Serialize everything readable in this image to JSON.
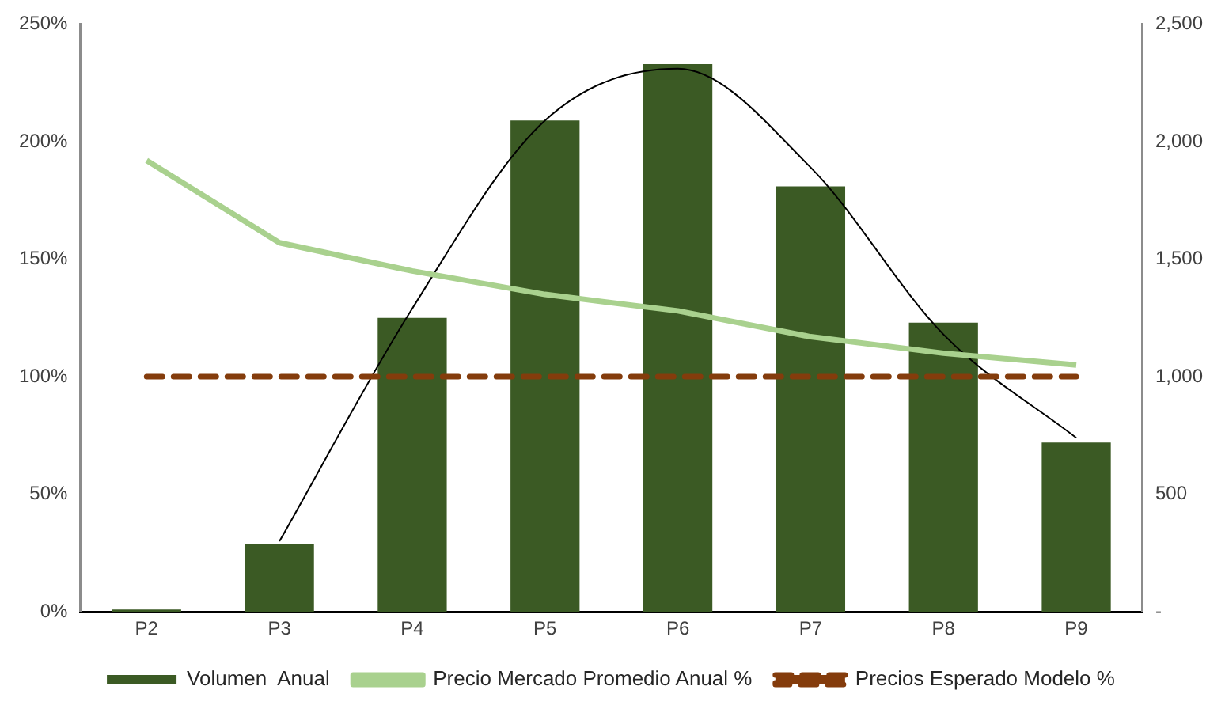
{
  "chart_data": {
    "type": "bar",
    "categories": [
      "P2",
      "P3",
      "P4",
      "P5",
      "P6",
      "P7",
      "P8",
      "P9"
    ],
    "series": [
      {
        "name": "Volumen  Anual",
        "axis": "y2",
        "color": "#3b5a24",
        "values": [
          10,
          290,
          1250,
          2090,
          2330,
          1810,
          1230,
          720
        ]
      },
      {
        "name": "Precio Mercado Promedio Anual %",
        "type": "line",
        "axis": "y",
        "color": "#a9d18e",
        "line_style": "solid",
        "values": [
          192,
          157,
          145,
          135,
          128,
          117,
          110,
          105
        ]
      },
      {
        "name": "Precios Esperado Modelo %",
        "type": "line",
        "axis": "y",
        "color": "#843c0c",
        "line_style": "dashed",
        "values": [
          100,
          100,
          100,
          100,
          100,
          100,
          100,
          100
        ]
      },
      {
        "type": "line",
        "axis": "y2",
        "color": "#000000",
        "line_style": "solid",
        "values": [
          null,
          300,
          1290,
          2090,
          2310,
          1890,
          1180,
          740
        ]
      }
    ],
    "ylim": [
      0,
      250
    ],
    "yticks": [
      {
        "value": 0,
        "label": "0%"
      },
      {
        "value": 50,
        "label": "50%"
      },
      {
        "value": 100,
        "label": "100%"
      },
      {
        "value": 150,
        "label": "150%"
      },
      {
        "value": 200,
        "label": "200%"
      },
      {
        "value": 250,
        "label": "250%"
      }
    ],
    "y2lim": [
      0,
      2500
    ],
    "y2ticks": [
      {
        "value": 0,
        "label": "-"
      },
      500,
      {
        "value": 1000,
        "label": "1,000"
      },
      {
        "value": 1500,
        "label": "1,500"
      },
      {
        "value": 2000,
        "label": "2,000"
      },
      {
        "value": 2500,
        "label": "2,500"
      }
    ],
    "grid": false,
    "legend": "bottom",
    "marker": "none"
  }
}
